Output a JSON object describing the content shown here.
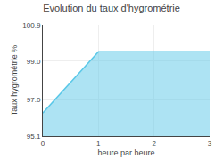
{
  "chart_data": {
    "type": "area",
    "title": "Evolution du taux d'hygrométrie",
    "xlabel": "heure par heure",
    "ylabel": "Taux hygrométrie %",
    "x": [
      0,
      1,
      3
    ],
    "values": [
      96.3,
      99.5,
      99.5
    ],
    "color": "#5bc8e8",
    "xlim": [
      0,
      3
    ],
    "ylim": [
      95.1,
      100.9
    ],
    "xticks": [
      0,
      1,
      2,
      3
    ],
    "yticks": [
      95.1,
      {
        "value": 97,
        "label": "97.0"
      },
      {
        "value": 99,
        "label": "99.0"
      },
      100.9
    ],
    "grid": true
  }
}
